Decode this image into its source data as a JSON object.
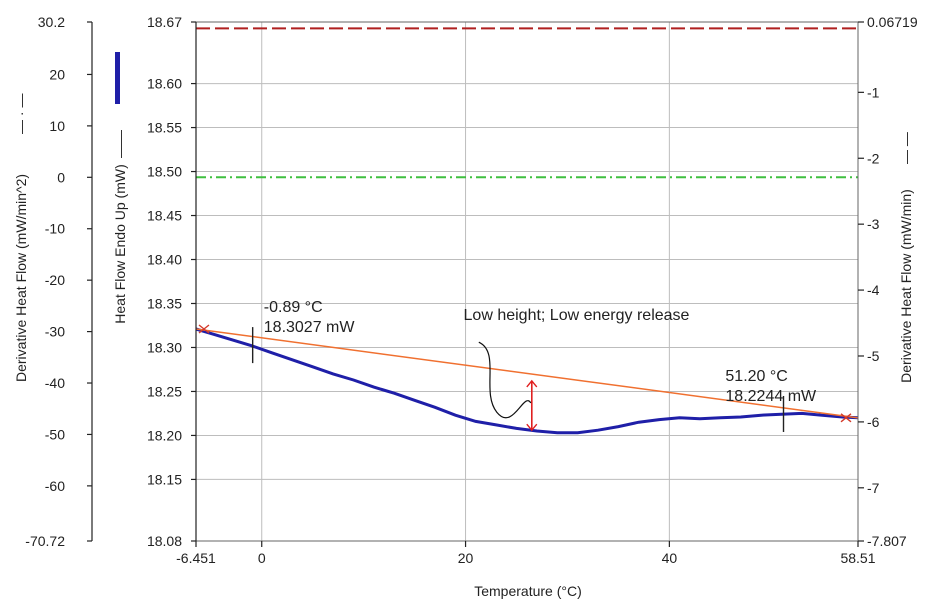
{
  "chart_data": {
    "type": "line",
    "title": "",
    "xlabel": "Temperature (°C)",
    "xlim": [
      -6.451,
      58.51
    ],
    "x_ticks": [
      {
        "value": -6.451,
        "label": "-6.451"
      },
      {
        "value": 0,
        "label": "0"
      },
      {
        "value": 20,
        "label": "20"
      },
      {
        "value": 40,
        "label": "40"
      },
      {
        "value": 58.51,
        "label": "58.51"
      }
    ],
    "x_grid": [
      0,
      20,
      40
    ],
    "y_axes": {
      "heat_flow": {
        "label": "Heat Flow Endo Up (mW)",
        "legend_line": "——",
        "ylim": [
          18.08,
          18.67
        ],
        "ticks": [
          {
            "value": 18.67,
            "label": "18.67"
          },
          {
            "value": 18.6,
            "label": "18.60"
          },
          {
            "value": 18.55,
            "label": "18.55"
          },
          {
            "value": 18.5,
            "label": "18.50"
          },
          {
            "value": 18.45,
            "label": "18.45"
          },
          {
            "value": 18.4,
            "label": "18.40"
          },
          {
            "value": 18.35,
            "label": "18.35"
          },
          {
            "value": 18.3,
            "label": "18.30"
          },
          {
            "value": 18.25,
            "label": "18.25"
          },
          {
            "value": 18.2,
            "label": "18.20"
          },
          {
            "value": 18.15,
            "label": "18.15"
          },
          {
            "value": 18.08,
            "label": "18.08"
          }
        ],
        "grid": [
          18.6,
          18.55,
          18.5,
          18.45,
          18.4,
          18.35,
          18.3,
          18.25,
          18.2,
          18.15
        ]
      },
      "derivative_2": {
        "label": "Derivative Heat Flow (mW/min^2)",
        "legend_line": "— · —",
        "ylim": [
          -70.72,
          30.2
        ],
        "ticks": [
          {
            "value": 30.2,
            "label": "30.2"
          },
          {
            "value": 20,
            "label": "20"
          },
          {
            "value": 10,
            "label": "10"
          },
          {
            "value": 0,
            "label": "0"
          },
          {
            "value": -10,
            "label": "-10"
          },
          {
            "value": -20,
            "label": "-20"
          },
          {
            "value": -30,
            "label": "-30"
          },
          {
            "value": -40,
            "label": "-40"
          },
          {
            "value": -50,
            "label": "-50"
          },
          {
            "value": -60,
            "label": "-60"
          },
          {
            "value": -70.72,
            "label": "-70.72"
          }
        ]
      },
      "derivative_1": {
        "label": "Derivative Heat Flow (mW/min)",
        "legend_line": "— —",
        "ylim": [
          -7.807,
          0.06719
        ],
        "ticks": [
          {
            "value": 0.06719,
            "label": "0.06719"
          },
          {
            "value": -1,
            "label": "-1"
          },
          {
            "value": -2,
            "label": "-2"
          },
          {
            "value": -3,
            "label": "-3"
          },
          {
            "value": -4,
            "label": "-4"
          },
          {
            "value": -5,
            "label": "-5"
          },
          {
            "value": -6,
            "label": "-6"
          },
          {
            "value": -7,
            "label": "-7"
          },
          {
            "value": -7.807,
            "label": "-7.807"
          }
        ]
      }
    },
    "series": [
      {
        "axis": "heat_flow",
        "color": "#1f1fa8",
        "style": "solid",
        "x": [
          -6.451,
          -5,
          -3,
          -1,
          1,
          3,
          5,
          7,
          9,
          11,
          13,
          15,
          17,
          19,
          21,
          23,
          25,
          27,
          29,
          31,
          33,
          35,
          37,
          39,
          41,
          43,
          45,
          47,
          49,
          51,
          53,
          55,
          57,
          58.51
        ],
        "y": [
          18.321,
          18.316,
          18.309,
          18.302,
          18.294,
          18.286,
          18.278,
          18.27,
          18.263,
          18.255,
          18.248,
          18.24,
          18.232,
          18.223,
          18.216,
          18.212,
          18.208,
          18.205,
          18.203,
          18.203,
          18.206,
          18.21,
          18.215,
          18.218,
          18.22,
          18.219,
          18.22,
          18.221,
          18.223,
          18.224,
          18.225,
          18.223,
          18.221,
          18.22
        ]
      },
      {
        "axis": "derivative_1",
        "color": "#b02020",
        "style": "dash",
        "x": [
          -6.451,
          58.51
        ],
        "y": [
          -0.03,
          -0.03
        ]
      },
      {
        "axis": "derivative_2",
        "color": "#3fbf3f",
        "style": "dashdot",
        "x": [
          -6.451,
          58.51
        ],
        "y": [
          0,
          0
        ]
      }
    ],
    "baseline": {
      "color": "#f07030",
      "x": [
        -6.451,
        58.51
      ],
      "y": [
        18.321,
        18.22
      ]
    },
    "markers": [
      {
        "x": -0.89,
        "y": 18.3027
      },
      {
        "x": 51.2,
        "y": 18.2244
      }
    ],
    "peak_height": {
      "x": 26.5,
      "y_top": 18.262,
      "y_bottom": 18.206
    },
    "annotations": [
      {
        "lines": [
          "-0.89 °C",
          "18.3027 mW"
        ],
        "x": 0.2,
        "y": 18.3405
      },
      {
        "lines": [
          "Low height; Low energy release"
        ],
        "x": 19.8,
        "y": 18.331
      },
      {
        "lines": [
          "51.20 °C",
          "18.2244 mW"
        ],
        "x": 45.5,
        "y": 18.262
      }
    ],
    "legend_swatch": {
      "color": "#1f1fa8"
    }
  }
}
